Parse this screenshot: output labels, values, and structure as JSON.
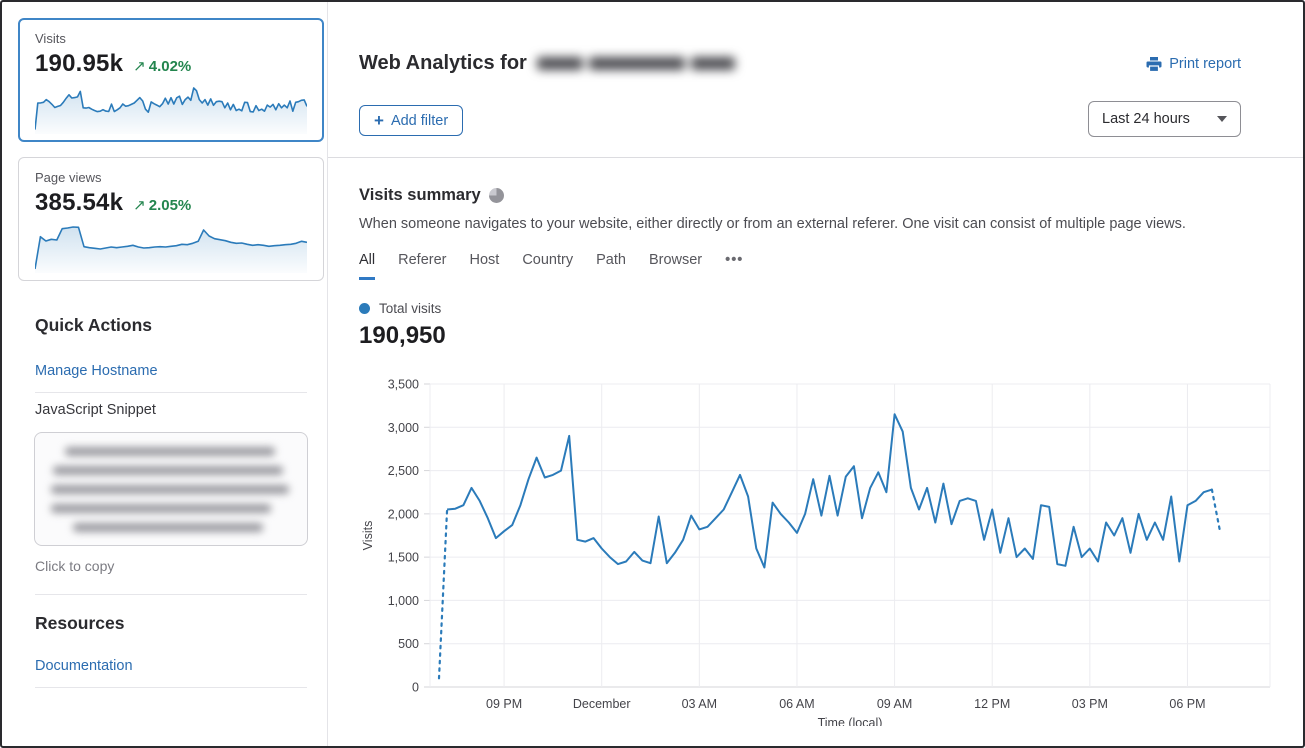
{
  "colors": {
    "link_blue": "#2b6cb0",
    "chart_blue": "#2b7bba",
    "positive_green": "#23854e",
    "selected_card_border": "#3f86c7",
    "grid": "#ececf0",
    "axis": "#d6d6da"
  },
  "icons": {
    "trend_up": "↗",
    "plus": "+",
    "more_tabs": "•••"
  },
  "sidebar": {
    "cards": [
      {
        "label": "Visits",
        "value": "190.95k",
        "delta": "4.02%",
        "selected": true
      },
      {
        "label": "Page views",
        "value": "385.54k",
        "delta": "2.05%",
        "selected": false,
        "sparkline": [
          150,
          5000,
          4350,
          4600,
          4500,
          6200,
          6300,
          6450,
          6400,
          3500,
          3350,
          3250,
          3150,
          3300,
          3450,
          3350,
          3450,
          3550,
          3700,
          3450,
          3300,
          3350,
          3450,
          3500,
          3450,
          3550,
          3650,
          3850,
          3800,
          4000,
          4300,
          6000,
          5100,
          4700,
          4550,
          4400,
          4150,
          4000,
          4050,
          3850,
          3700,
          3800,
          3700,
          3550,
          3650,
          3700,
          3800,
          3850,
          4000,
          4300,
          4150
        ]
      }
    ],
    "quick_actions": {
      "title": "Quick Actions",
      "manage_hostname": "Manage Hostname",
      "snippet_label": "JavaScript Snippet",
      "copy_hint": "Click to copy"
    },
    "resources": {
      "title": "Resources",
      "documentation": "Documentation"
    }
  },
  "header": {
    "title_prefix": "Web Analytics for",
    "print_label": "Print report",
    "add_filter_label": "Add filter",
    "time_range": "Last 24 hours"
  },
  "summary": {
    "title": "Visits summary",
    "description": "When someone navigates to your website, either directly or from an external referer. One visit can consist of multiple page views.",
    "tabs": [
      "All",
      "Referer",
      "Host",
      "Country",
      "Path",
      "Browser"
    ],
    "active_tab": "All",
    "legend_label": "Total visits",
    "total": "190,950"
  },
  "chart_data": {
    "type": "line",
    "series_name": "Total visits",
    "xlabel": "Time (local)",
    "ylabel": "Visits",
    "ylim": [
      0,
      3500
    ],
    "grid": true,
    "interval_minutes": 15,
    "xticks": [
      {
        "index": 8,
        "label": "09 PM"
      },
      {
        "index": 20,
        "label": "December"
      },
      {
        "index": 32,
        "label": "03 AM"
      },
      {
        "index": 44,
        "label": "06 AM"
      },
      {
        "index": 56,
        "label": "09 AM"
      },
      {
        "index": 68,
        "label": "12 PM"
      },
      {
        "index": 80,
        "label": "03 PM"
      },
      {
        "index": 92,
        "label": "06 PM"
      }
    ],
    "yticks": [
      {
        "value": 0,
        "label": "0"
      },
      {
        "value": 500,
        "label": "500"
      },
      {
        "value": 1000,
        "label": "1,000"
      },
      {
        "value": 1500,
        "label": "1,500"
      },
      {
        "value": 2000,
        "label": "2,000"
      },
      {
        "value": 2500,
        "label": "2,500"
      },
      {
        "value": 3000,
        "label": "3,000"
      },
      {
        "value": 3500,
        "label": "3,500"
      }
    ],
    "dashed_segments": [
      [
        0,
        1
      ],
      [
        95,
        96
      ]
    ],
    "values": [
      100,
      2050,
      2060,
      2100,
      2300,
      2150,
      1950,
      1720,
      1800,
      1870,
      2100,
      2400,
      2650,
      2420,
      2450,
      2500,
      2900,
      1700,
      1680,
      1720,
      1600,
      1500,
      1420,
      1450,
      1560,
      1460,
      1430,
      1970,
      1430,
      1550,
      1700,
      1980,
      1820,
      1850,
      1950,
      2050,
      2250,
      2450,
      2200,
      1600,
      1380,
      2130,
      2000,
      1900,
      1780,
      2000,
      2400,
      1980,
      2440,
      1980,
      2430,
      2550,
      1950,
      2300,
      2480,
      2250,
      3150,
      2950,
      2300,
      2050,
      2300,
      1900,
      2350,
      1880,
      2150,
      2180,
      2150,
      1700,
      2050,
      1550,
      1950,
      1500,
      1600,
      1480,
      2100,
      2080,
      1420,
      1400,
      1850,
      1500,
      1600,
      1450,
      1900,
      1750,
      1950,
      1550,
      2000,
      1700,
      1900,
      1700,
      2200,
      1450,
      2100,
      2150,
      2250,
      2280,
      1800
    ]
  }
}
